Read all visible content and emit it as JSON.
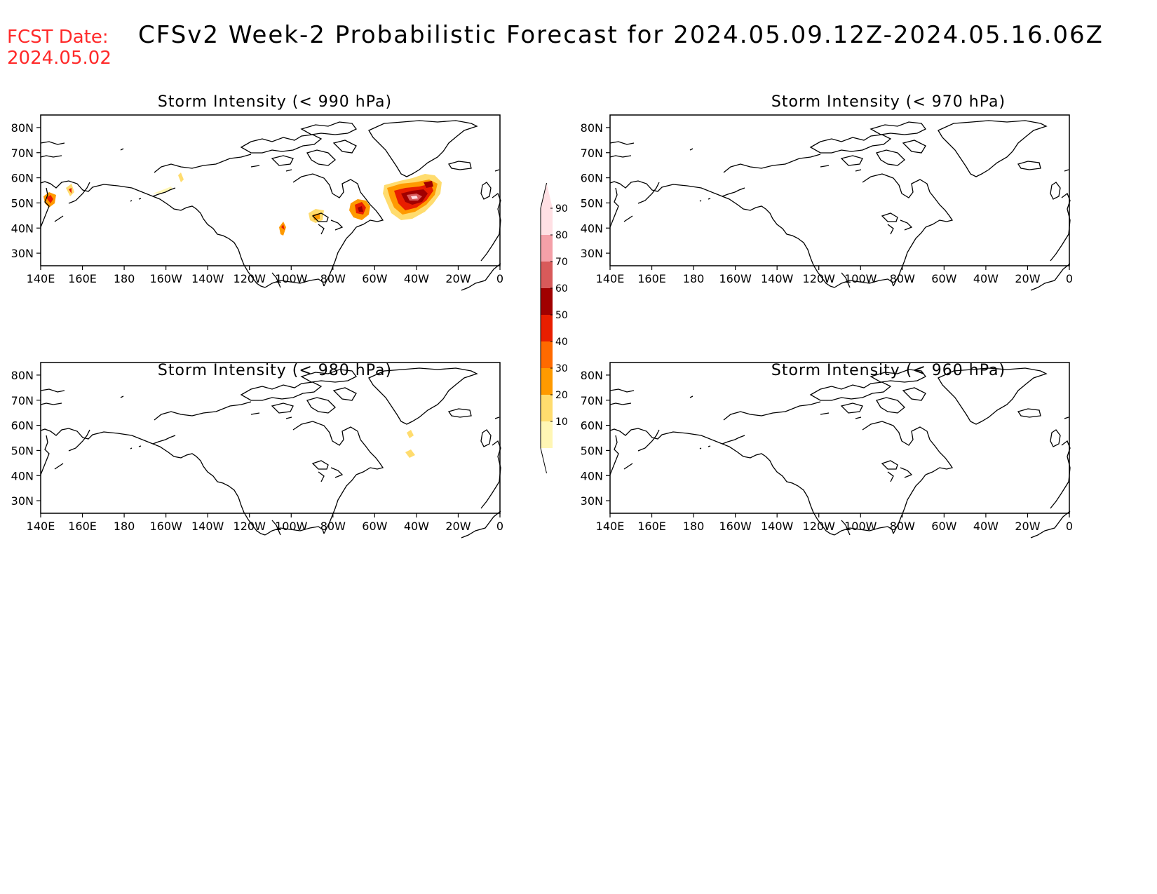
{
  "header": {
    "fcst_label": "FCST Date:",
    "fcst_date": "2024.05.02",
    "title": "CFSv2 Week-2 Probabilistic Forecast for 2024.05.09.12Z-2024.05.16.06Z"
  },
  "panels": [
    {
      "title": "Storm Intensity (< 990 hPa)"
    },
    {
      "title": "Storm Intensity (< 970 hPa)"
    },
    {
      "title": "Storm Intensity (< 980 hPa)"
    },
    {
      "title": "Storm Intensity (< 960 hPa)"
    }
  ],
  "axes": {
    "lon_labels": [
      "140E",
      "160E",
      "180",
      "160W",
      "140W",
      "120W",
      "100W",
      "80W",
      "60W",
      "40W",
      "20W",
      "0"
    ],
    "lat_labels": [
      "80N",
      "70N",
      "60N",
      "50N",
      "40N",
      "30N"
    ]
  },
  "colorbar": {
    "labels": [
      "90",
      "80",
      "70",
      "60",
      "50",
      "40",
      "30",
      "20",
      "10"
    ],
    "colors": [
      "#ffe0e4",
      "#f4a0a8",
      "#d85a5a",
      "#a00000",
      "#e81e00",
      "#ff6a00",
      "#ff9a00",
      "#ffdc6e",
      "#fff6b4"
    ]
  },
  "colors": {
    "fcst_date": "#ff2a2a",
    "coast": "#000000"
  }
}
